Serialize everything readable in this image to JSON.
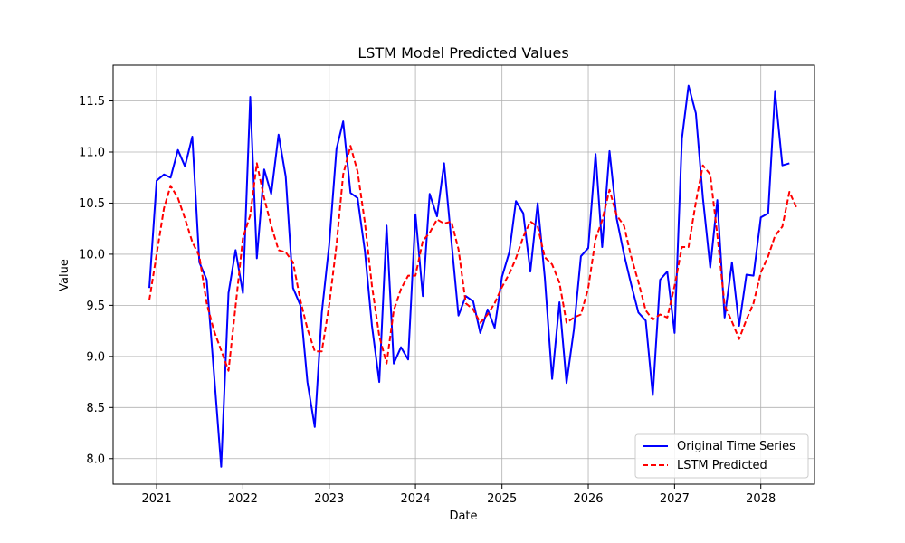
{
  "chart_data": {
    "type": "line",
    "title": "LSTM Model Predicted Values",
    "xlabel": "Date",
    "ylabel": "Value",
    "x_type": "date",
    "x_start": "2020-12",
    "x_step": "1 month",
    "xlim": [
      "2020-07-01",
      "2028-08-15"
    ],
    "ylim": [
      7.75,
      11.85
    ],
    "x_ticks": [
      "2021",
      "2022",
      "2023",
      "2024",
      "2025",
      "2026",
      "2027",
      "2028"
    ],
    "y_ticks": [
      "8.0",
      "8.5",
      "9.0",
      "9.5",
      "10.0",
      "10.5",
      "11.0",
      "11.5"
    ],
    "grid": true,
    "legend_position": "lower-right",
    "series": [
      {
        "name": "Original Time Series",
        "color": "#0000ff",
        "style": "solid",
        "values": [
          9.67,
          10.72,
          10.78,
          10.75,
          11.02,
          10.86,
          11.15,
          9.92,
          9.75,
          8.83,
          7.92,
          9.62,
          10.04,
          9.62,
          11.54,
          9.96,
          10.83,
          10.59,
          11.17,
          10.76,
          9.67,
          9.5,
          8.75,
          8.31,
          9.43,
          10.09,
          11.03,
          11.3,
          10.6,
          10.55,
          10.03,
          9.3,
          8.75,
          10.28,
          8.93,
          9.09,
          8.97,
          10.39,
          9.59,
          10.59,
          10.37,
          10.89,
          10.13,
          9.4,
          9.59,
          9.54,
          9.23,
          9.46,
          9.28,
          9.78,
          10.02,
          10.52,
          10.4,
          9.83,
          10.5,
          9.77,
          8.78,
          9.53,
          8.74,
          9.26,
          9.98,
          10.06,
          10.98,
          10.07,
          11.01,
          10.35,
          10.0,
          9.71,
          9.43,
          9.35,
          8.62,
          9.75,
          9.83,
          9.23,
          11.13,
          11.65,
          11.38,
          10.55,
          9.87,
          10.53,
          9.38,
          9.92,
          9.3,
          9.8,
          9.79,
          10.36,
          10.4,
          11.59,
          10.87,
          10.89
        ]
      },
      {
        "name": "LSTM Predicted",
        "color": "#ff0000",
        "style": "dashed",
        "values": [
          9.55,
          10.0,
          10.45,
          10.67,
          10.55,
          10.35,
          10.12,
          9.98,
          9.52,
          9.25,
          9.06,
          8.86,
          9.49,
          10.16,
          10.38,
          10.89,
          10.55,
          10.28,
          10.04,
          10.02,
          9.92,
          9.55,
          9.27,
          9.05,
          9.05,
          9.5,
          10.09,
          10.78,
          11.06,
          10.81,
          10.31,
          9.69,
          9.2,
          8.93,
          9.45,
          9.66,
          9.79,
          9.79,
          10.13,
          10.21,
          10.34,
          10.3,
          10.32,
          10.05,
          9.52,
          9.46,
          9.33,
          9.41,
          9.52,
          9.68,
          9.81,
          9.96,
          10.17,
          10.32,
          10.27,
          9.97,
          9.9,
          9.72,
          9.33,
          9.38,
          9.41,
          9.67,
          10.15,
          10.33,
          10.63,
          10.38,
          10.28,
          9.98,
          9.73,
          9.45,
          9.36,
          9.41,
          9.38,
          9.69,
          10.07,
          10.07,
          10.51,
          10.87,
          10.78,
          10.19,
          9.5,
          9.34,
          9.17,
          9.36,
          9.52,
          9.82,
          9.98,
          10.18,
          10.27,
          10.61,
          10.45
        ]
      }
    ]
  }
}
